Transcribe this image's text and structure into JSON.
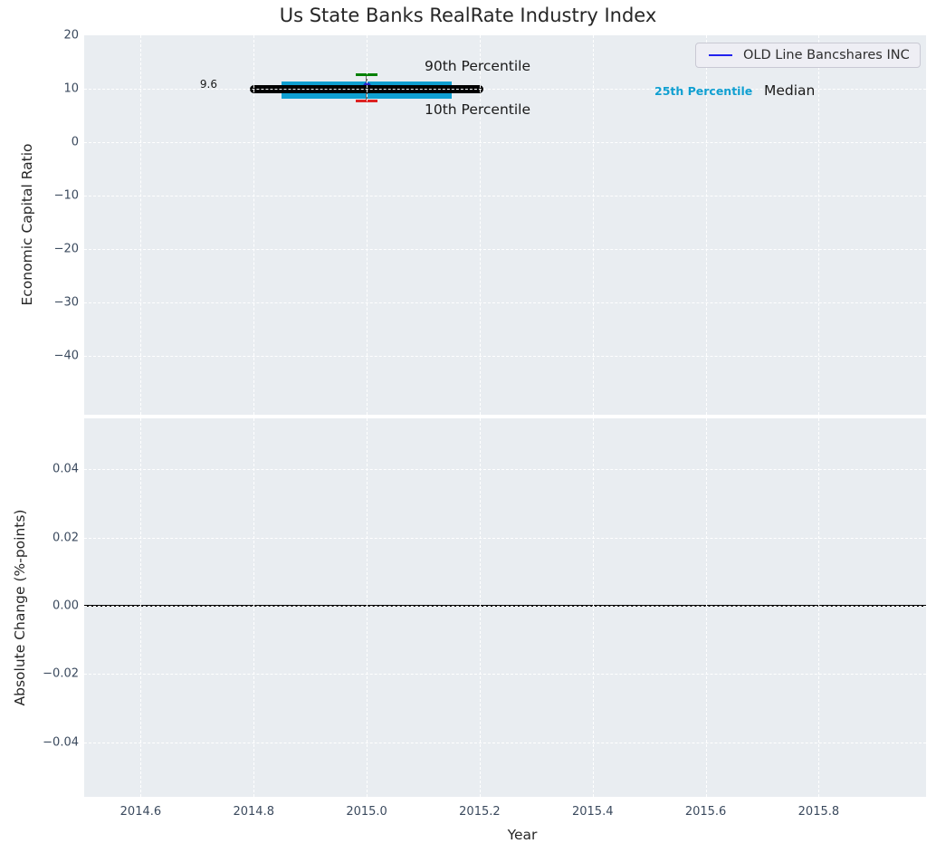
{
  "title": "Us State Banks RealRate Industry Index",
  "colors": {
    "figure_bg": "#ffffff",
    "plot_bg": "#e9edf1",
    "grid": "#ffffff",
    "tick_label": "#3b4a5e",
    "text": "#262626",
    "median_line": "#000000",
    "band": "#0f9fd1",
    "p90_cap": "#008000",
    "p10_cap": "#dd2222",
    "company_dot": "#2222cc",
    "whisker": "#666666",
    "legend_line": "#2222ee",
    "zero_line": "#000000"
  },
  "top_plot": {
    "ylabel": "Economic Capital Ratio",
    "ytick_labels": [
      "20",
      "10",
      "0",
      "−10",
      "−20",
      "−30",
      "−40"
    ],
    "annotations": {
      "median_value_label": "9.6",
      "p90_label": "90th Percentile",
      "p10_label": "10th Percentile",
      "p25_label": "25th Percentile",
      "median_label": "Median"
    },
    "legend": {
      "label": "OLD Line Bancshares INC"
    }
  },
  "bottom_plot": {
    "ylabel": "Absolute Change (%-points)",
    "xlabel": "Year",
    "ytick_labels": [
      "0.04",
      "0.02",
      "0.00",
      "−0.02",
      "−0.04"
    ],
    "xtick_labels": [
      "2014.6",
      "2014.8",
      "2015.0",
      "2015.2",
      "2015.4",
      "2015.6",
      "2015.8"
    ]
  },
  "chart_data": [
    {
      "type": "scatter",
      "title": "Us State Banks RealRate Industry Index",
      "xlabel": "",
      "ylabel": "Economic Capital Ratio",
      "xlim": [
        2014.5,
        2015.99
      ],
      "ylim": [
        -51,
        20
      ],
      "xticks": [
        2014.6,
        2014.8,
        2015.0,
        2015.2,
        2015.4,
        2015.6,
        2015.8
      ],
      "yticks": [
        20,
        10,
        0,
        -10,
        -20,
        -30,
        -40
      ],
      "grid": true,
      "legend_entries": [
        "OLD Line Bancshares INC"
      ],
      "legend_position": "upper right",
      "series": [
        {
          "name": "OLD Line Bancshares INC",
          "kind": "point",
          "x": 2015.0,
          "y": 10.4
        },
        {
          "name": "Median",
          "kind": "thick-hline",
          "y": 9.6,
          "x_span": [
            2014.8,
            2015.2
          ],
          "value_label": "9.6"
        },
        {
          "name": "25th-75th Percentile Band",
          "kind": "band",
          "y_low": 8.2,
          "y_high": 11.4,
          "x_span": [
            2014.85,
            2015.15
          ]
        },
        {
          "name": "90th Percentile",
          "kind": "whisker-cap",
          "x": 2015.0,
          "y": 12.7,
          "cap_half_width": 0.019
        },
        {
          "name": "10th Percentile",
          "kind": "whisker-cap",
          "x": 2015.0,
          "y": 7.7,
          "cap_half_width": 0.019
        }
      ]
    },
    {
      "type": "line",
      "xlabel": "Year",
      "ylabel": "Absolute Change (%-points)",
      "xlim": [
        2014.5,
        2015.99
      ],
      "ylim": [
        -0.056,
        0.055
      ],
      "xticks": [
        2014.6,
        2014.8,
        2015.0,
        2015.2,
        2015.4,
        2015.6,
        2015.8
      ],
      "yticks": [
        0.04,
        0.02,
        0.0,
        -0.02,
        -0.04
      ],
      "grid": true,
      "series": [
        {
          "name": "zero-change-line",
          "kind": "hline",
          "y": 0.0,
          "x_span": [
            2014.5,
            2015.99
          ]
        }
      ]
    }
  ]
}
